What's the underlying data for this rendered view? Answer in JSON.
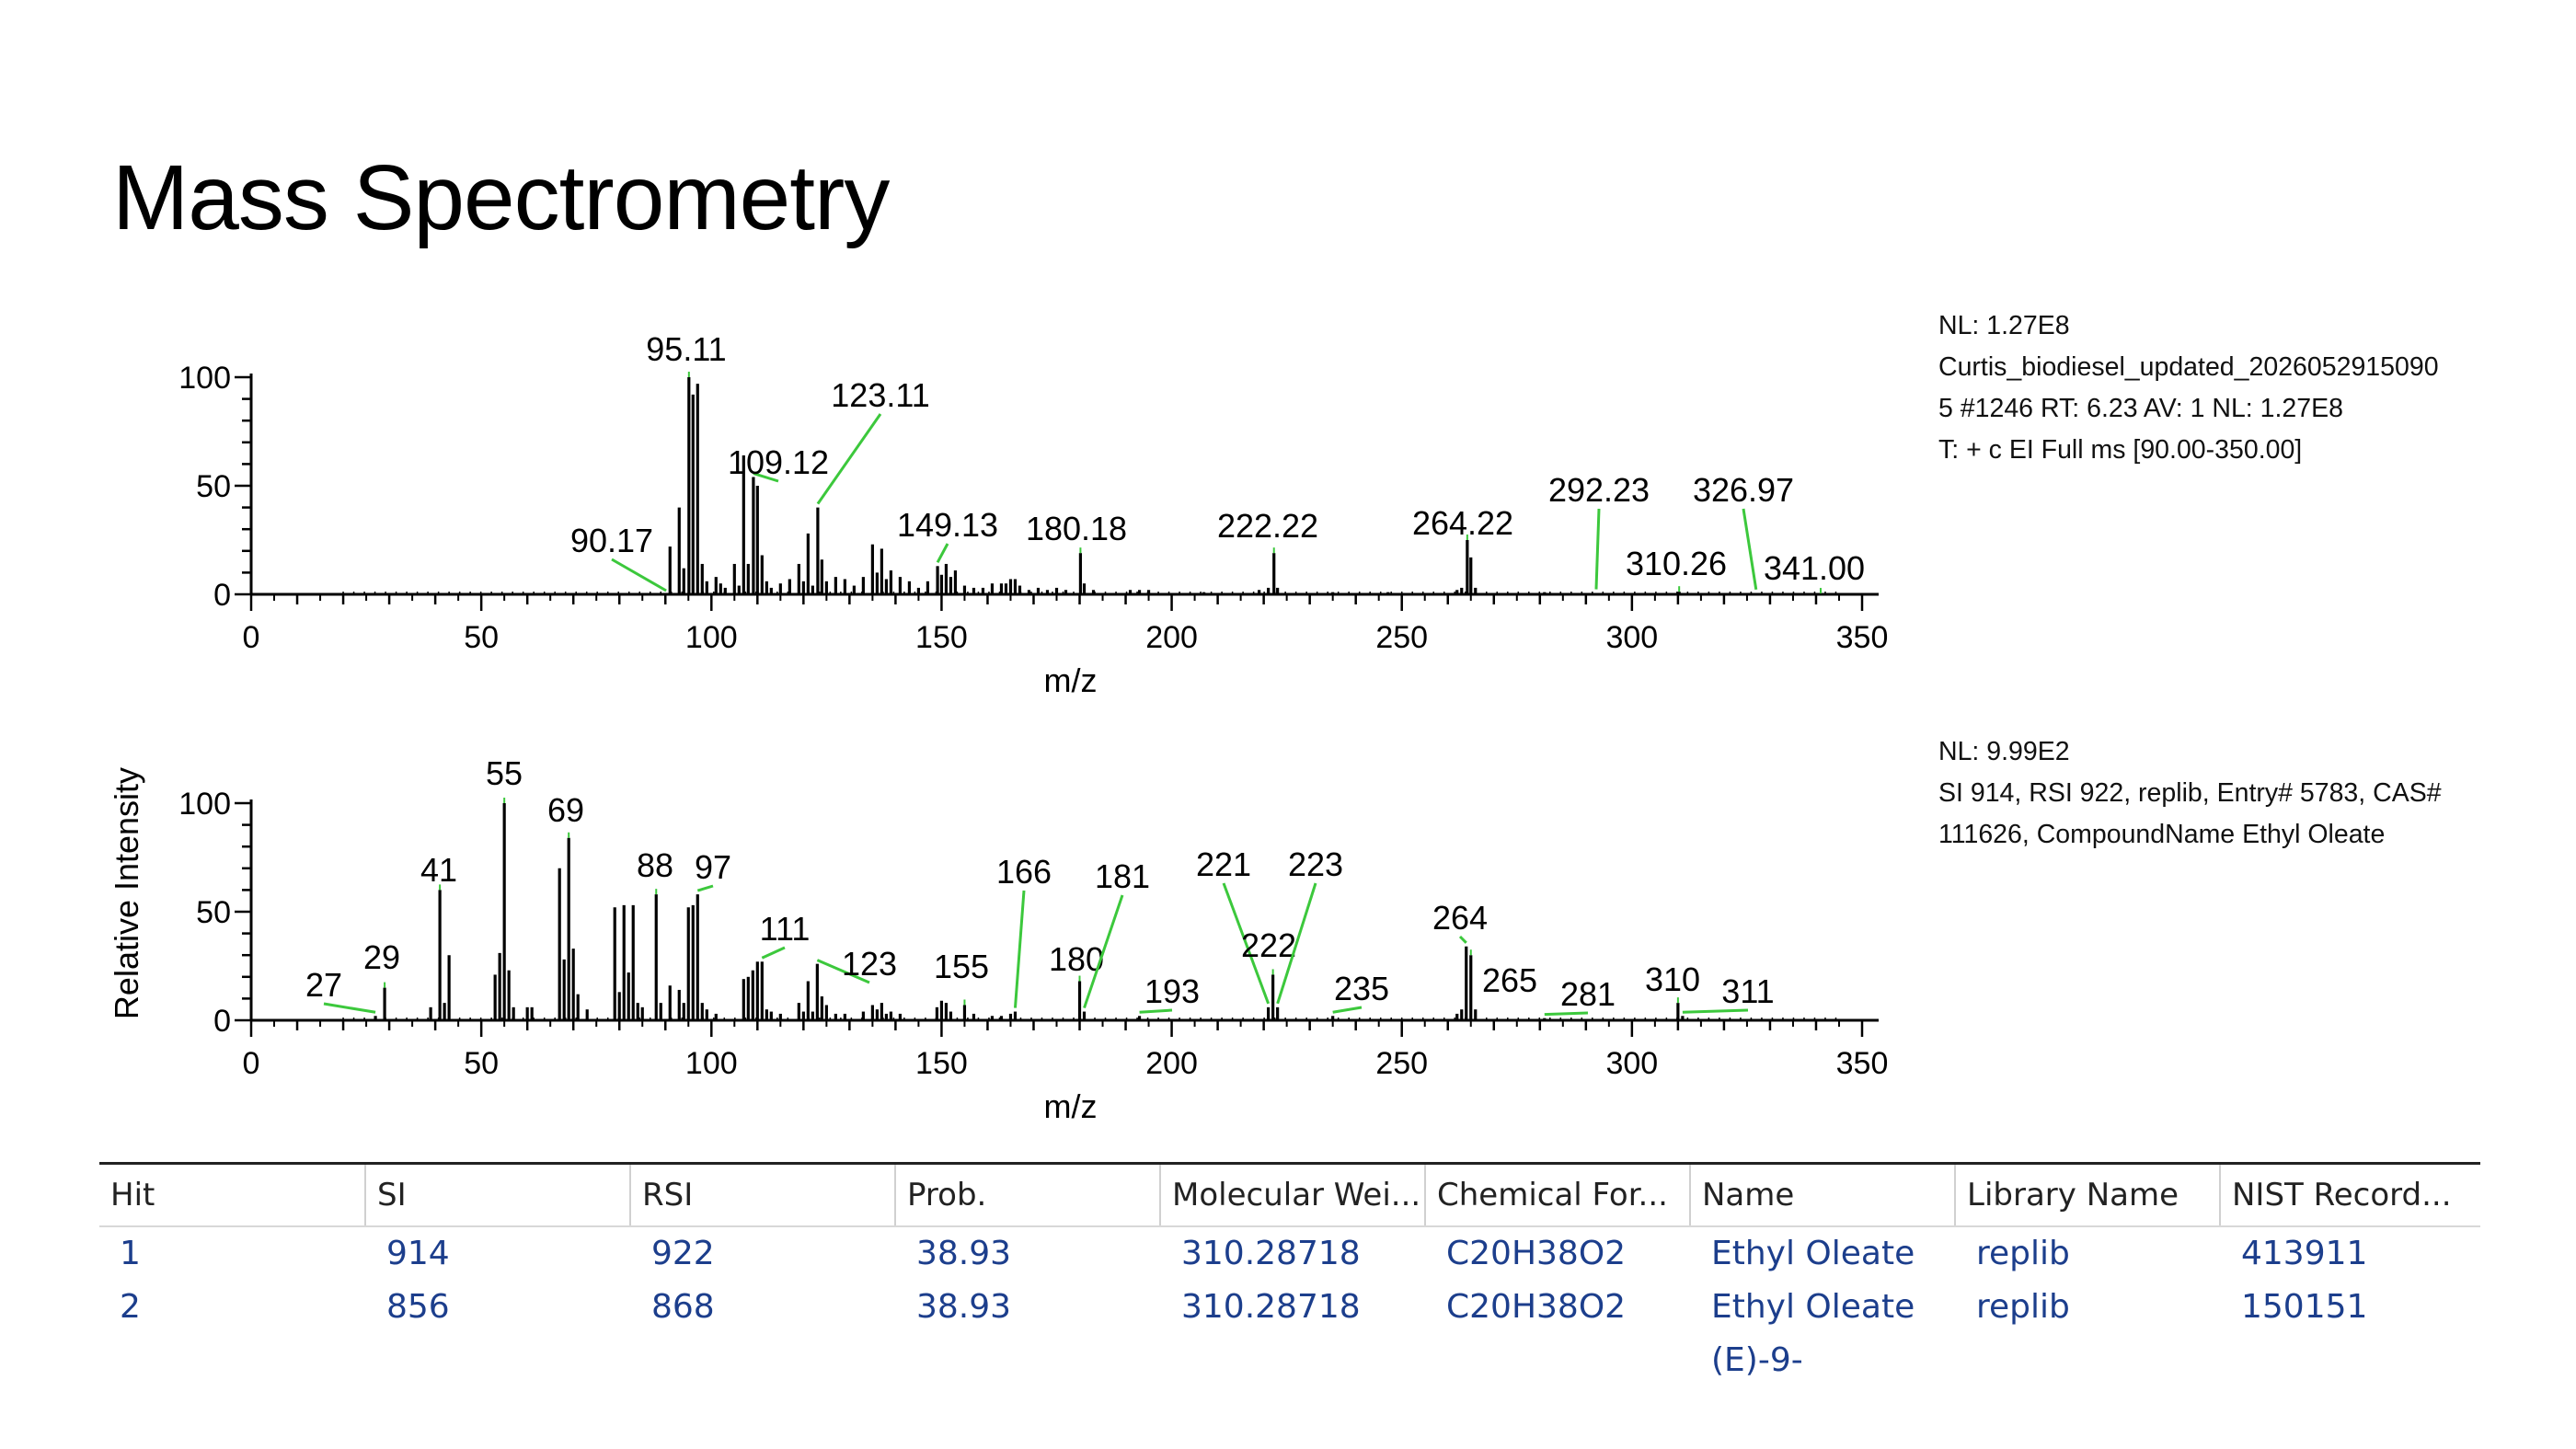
{
  "slide": {
    "title": "Mass Spectrometry"
  },
  "info_top": {
    "lines": [
      "NL: 1.27E8",
      "Curtis_biodiesel_updated_2026052915090",
      "5 #1246 RT: 6.23 AV: 1 NL: 1.27E8",
      "T: + c EI Full ms [90.00-350.00]"
    ]
  },
  "info_bottom": {
    "lines": [
      "NL: 9.99E2",
      "SI 914, RSI 922, replib, Entry# 5783, CAS#",
      "111626, CompoundName Ethyl Oleate"
    ]
  },
  "colors": {
    "bars": "#000000",
    "leader": "#3cc83c",
    "table_text": "#1c3e8c"
  },
  "chart_data": [
    {
      "type": "bar",
      "xlabel": "m/z",
      "ylabel": "",
      "xlim": [
        0,
        350
      ],
      "ylim": [
        0,
        100
      ],
      "xticks": [
        0,
        50,
        100,
        150,
        200,
        250,
        300,
        350
      ],
      "yticks": [
        0,
        50,
        100
      ],
      "peaks": [
        [
          91,
          22
        ],
        [
          93,
          40
        ],
        [
          94,
          12
        ],
        [
          95.11,
          100
        ],
        [
          96,
          92
        ],
        [
          97,
          97
        ],
        [
          98,
          14
        ],
        [
          99,
          6
        ],
        [
          101,
          8
        ],
        [
          102,
          5
        ],
        [
          103,
          3
        ],
        [
          105,
          14
        ],
        [
          106,
          4
        ],
        [
          107,
          64
        ],
        [
          108,
          14
        ],
        [
          109.12,
          54
        ],
        [
          110,
          50
        ],
        [
          111,
          18
        ],
        [
          112,
          6
        ],
        [
          113,
          3
        ],
        [
          115,
          5
        ],
        [
          117,
          7
        ],
        [
          119,
          14
        ],
        [
          120,
          6
        ],
        [
          121,
          28
        ],
        [
          122,
          4
        ],
        [
          123.11,
          40
        ],
        [
          124,
          16
        ],
        [
          125,
          6
        ],
        [
          127,
          8
        ],
        [
          129,
          7
        ],
        [
          131,
          4
        ],
        [
          133,
          8
        ],
        [
          135,
          23
        ],
        [
          136,
          10
        ],
        [
          137,
          21
        ],
        [
          138,
          7
        ],
        [
          139,
          11
        ],
        [
          141,
          8
        ],
        [
          143,
          6
        ],
        [
          145,
          3
        ],
        [
          147,
          6
        ],
        [
          149.13,
          13
        ],
        [
          150,
          9
        ],
        [
          151,
          14
        ],
        [
          152,
          8
        ],
        [
          153,
          11
        ],
        [
          155,
          4
        ],
        [
          157,
          3
        ],
        [
          159,
          3
        ],
        [
          161,
          5
        ],
        [
          163,
          5
        ],
        [
          164,
          5
        ],
        [
          165,
          7
        ],
        [
          166,
          7
        ],
        [
          167,
          4
        ],
        [
          169,
          2
        ],
        [
          171,
          3
        ],
        [
          173,
          2
        ],
        [
          175,
          3
        ],
        [
          177,
          2
        ],
        [
          180.18,
          19
        ],
        [
          181,
          5
        ],
        [
          183,
          2
        ],
        [
          191,
          2
        ],
        [
          193,
          2
        ],
        [
          195,
          2
        ],
        [
          207,
          1
        ],
        [
          219,
          2
        ],
        [
          221,
          3
        ],
        [
          222.22,
          19
        ],
        [
          223,
          3
        ],
        [
          235,
          1
        ],
        [
          247,
          1
        ],
        [
          262,
          2
        ],
        [
          263,
          3
        ],
        [
          264.22,
          25
        ],
        [
          265,
          17
        ],
        [
          266,
          3
        ],
        [
          281,
          1
        ],
        [
          292.23,
          0.6
        ],
        [
          310.26,
          1.2
        ],
        [
          326.97,
          0.5
        ],
        [
          341.0,
          0.4
        ]
      ],
      "labels": [
        {
          "text": "90.17",
          "mz": 90.17
        },
        {
          "text": "95.11",
          "mz": 95.11
        },
        {
          "text": "109.12",
          "mz": 109.12
        },
        {
          "text": "123.11",
          "mz": 123.11
        },
        {
          "text": "149.13",
          "mz": 149.13
        },
        {
          "text": "180.18",
          "mz": 180.18
        },
        {
          "text": "222.22",
          "mz": 222.22
        },
        {
          "text": "264.22",
          "mz": 264.22
        },
        {
          "text": "292.23",
          "mz": 292.23
        },
        {
          "text": "310.26",
          "mz": 310.26
        },
        {
          "text": "326.97",
          "mz": 326.97
        },
        {
          "text": "341.00",
          "mz": 341.0
        }
      ]
    },
    {
      "type": "bar",
      "xlabel": "m/z",
      "ylabel": "Relative Intensity",
      "xlim": [
        0,
        350
      ],
      "ylim": [
        0,
        100
      ],
      "xticks": [
        0,
        50,
        100,
        150,
        200,
        250,
        300,
        350
      ],
      "yticks": [
        0,
        50,
        100
      ],
      "peaks": [
        [
          27,
          2
        ],
        [
          29,
          15
        ],
        [
          39,
          6
        ],
        [
          41,
          60
        ],
        [
          42,
          8
        ],
        [
          43,
          30
        ],
        [
          53,
          21
        ],
        [
          54,
          31
        ],
        [
          55,
          100
        ],
        [
          56,
          23
        ],
        [
          57,
          6
        ],
        [
          60,
          6
        ],
        [
          61,
          6
        ],
        [
          67,
          70
        ],
        [
          68,
          28
        ],
        [
          69,
          84
        ],
        [
          70,
          33
        ],
        [
          71,
          12
        ],
        [
          73,
          5
        ],
        [
          79,
          52
        ],
        [
          80,
          13
        ],
        [
          81,
          53
        ],
        [
          82,
          22
        ],
        [
          83,
          53
        ],
        [
          84,
          8
        ],
        [
          85,
          6
        ],
        [
          88,
          58
        ],
        [
          89,
          8
        ],
        [
          91,
          16
        ],
        [
          93,
          14
        ],
        [
          94,
          8
        ],
        [
          95,
          52
        ],
        [
          96,
          53
        ],
        [
          97,
          58
        ],
        [
          98,
          8
        ],
        [
          99,
          5
        ],
        [
          101,
          3
        ],
        [
          107,
          19
        ],
        [
          108,
          20
        ],
        [
          109,
          23
        ],
        [
          110,
          27
        ],
        [
          111,
          27
        ],
        [
          112,
          5
        ],
        [
          113,
          4
        ],
        [
          115,
          3
        ],
        [
          119,
          8
        ],
        [
          120,
          4
        ],
        [
          121,
          18
        ],
        [
          122,
          4
        ],
        [
          123,
          26
        ],
        [
          124,
          11
        ],
        [
          125,
          7
        ],
        [
          127,
          3
        ],
        [
          129,
          3
        ],
        [
          133,
          4
        ],
        [
          135,
          7
        ],
        [
          136,
          5
        ],
        [
          137,
          8
        ],
        [
          138,
          3
        ],
        [
          139,
          4
        ],
        [
          141,
          3
        ],
        [
          149,
          6
        ],
        [
          150,
          9
        ],
        [
          151,
          8
        ],
        [
          152,
          4
        ],
        [
          155,
          7
        ],
        [
          157,
          3
        ],
        [
          161,
          2
        ],
        [
          163,
          2
        ],
        [
          165,
          3
        ],
        [
          166,
          4
        ],
        [
          180,
          18
        ],
        [
          181,
          4
        ],
        [
          193,
          2
        ],
        [
          221,
          6
        ],
        [
          222,
          21
        ],
        [
          223,
          6
        ],
        [
          235,
          2
        ],
        [
          262,
          3
        ],
        [
          263,
          5
        ],
        [
          264,
          34
        ],
        [
          265,
          30
        ],
        [
          266,
          5
        ],
        [
          281,
          1
        ],
        [
          310,
          8
        ],
        [
          311,
          2
        ]
      ],
      "labels": [
        {
          "text": "27",
          "mz": 27
        },
        {
          "text": "29",
          "mz": 29
        },
        {
          "text": "41",
          "mz": 41
        },
        {
          "text": "55",
          "mz": 55
        },
        {
          "text": "69",
          "mz": 69
        },
        {
          "text": "88",
          "mz": 88
        },
        {
          "text": "97",
          "mz": 97
        },
        {
          "text": "111",
          "mz": 111
        },
        {
          "text": "123",
          "mz": 123
        },
        {
          "text": "155",
          "mz": 155
        },
        {
          "text": "166",
          "mz": 166
        },
        {
          "text": "180",
          "mz": 180
        },
        {
          "text": "181",
          "mz": 181
        },
        {
          "text": "193",
          "mz": 193
        },
        {
          "text": "221",
          "mz": 221
        },
        {
          "text": "222",
          "mz": 222
        },
        {
          "text": "223",
          "mz": 223
        },
        {
          "text": "235",
          "mz": 235
        },
        {
          "text": "264",
          "mz": 264
        },
        {
          "text": "265",
          "mz": 265
        },
        {
          "text": "281",
          "mz": 281
        },
        {
          "text": "310",
          "mz": 310
        },
        {
          "text": "311",
          "mz": 311
        }
      ]
    }
  ],
  "table": {
    "headers": [
      "Hit",
      "SI",
      "RSI",
      "Prob.",
      "Molecular Wei...",
      "Chemical For...",
      "Name",
      "Library Name",
      "NIST Record..."
    ],
    "rows": [
      [
        "1",
        "914",
        "922",
        "38.93",
        "310.28718",
        "C20H38O2",
        "Ethyl Oleate",
        "replib",
        "413911"
      ],
      [
        "2",
        "856",
        "868",
        "38.93",
        "310.28718",
        "C20H38O2",
        "Ethyl Oleate",
        "replib",
        "150151"
      ]
    ],
    "continuation": "(E)-9-"
  }
}
